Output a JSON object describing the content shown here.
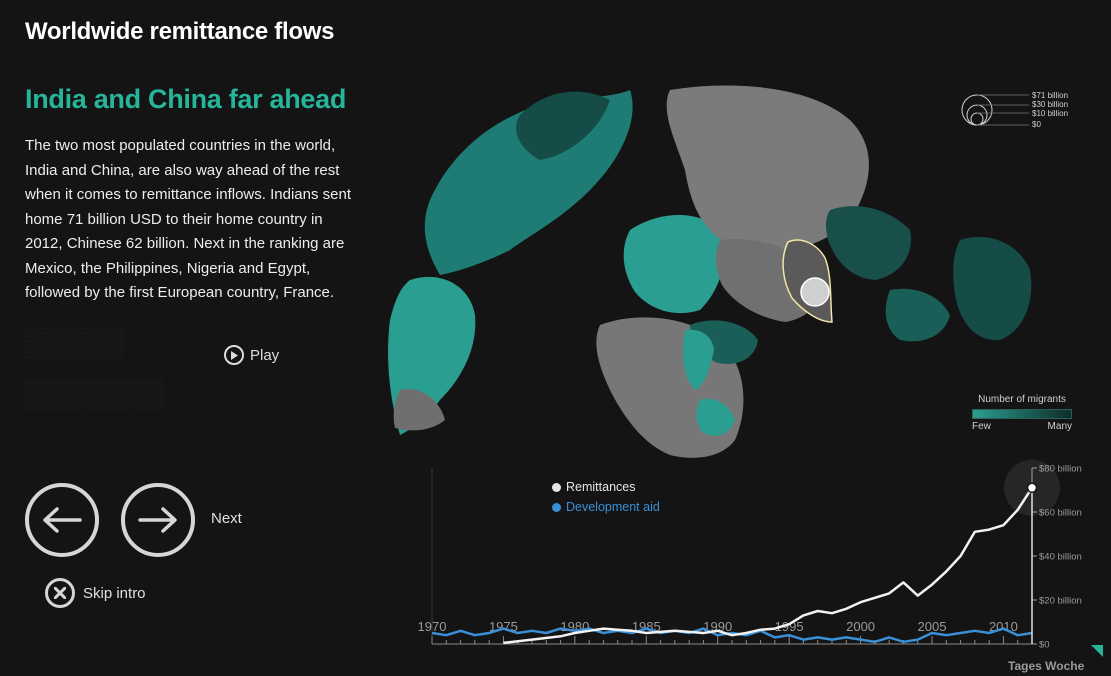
{
  "header": {
    "title": "Worldwide remittance flows"
  },
  "intro": {
    "heading": "India and China far ahead",
    "body": "The two most populated countries in the world, India and China, are also way ahead of the rest when it comes to remittance inflows. Indians sent home 71 billion USD to their home country in 2012, Chinese 62 billion. Next in the ranking are Mexico, the Philippines, Nigeria and Egypt, followed by the first European country, France.",
    "play_label": "Play"
  },
  "nav": {
    "next_label": "Next",
    "skip_label": "Skip intro"
  },
  "scale_legend": [
    "$71 billion",
    "$30 billion",
    "$10 billion",
    "$0"
  ],
  "migrants_legend": {
    "title": "Number of migrants",
    "low": "Few",
    "high": "Many",
    "colors": [
      "#2a9e90",
      "#0e2d2a"
    ]
  },
  "series_legend": [
    {
      "label": "Remittances",
      "color": "#e6e6e6"
    },
    {
      "label": "Development aid",
      "color": "#3a8fd6"
    }
  ],
  "chart_data": {
    "type": "line",
    "x_ticks": [
      "1970",
      "1975",
      "1980",
      "1985",
      "1990",
      "1995",
      "2000",
      "2005",
      "2010"
    ],
    "y_ticks": [
      "$0",
      "$20 billion",
      "$40 billion",
      "$60 billion",
      "$80 billion"
    ],
    "xlim": [
      1970,
      2012
    ],
    "ylim": [
      0,
      80
    ],
    "series": [
      {
        "name": "Remittances",
        "x": [
          1975,
          1977,
          1979,
          1980,
          1981,
          1982,
          1983,
          1984,
          1985,
          1986,
          1987,
          1988,
          1989,
          1990,
          1991,
          1992,
          1993,
          1994,
          1995,
          1996,
          1997,
          1998,
          1999,
          2000,
          2001,
          2002,
          2003,
          2004,
          2005,
          2006,
          2007,
          2008,
          2009,
          2010,
          2011,
          2012
        ],
        "values": [
          0.5,
          2,
          3.5,
          5,
          6,
          7,
          6.5,
          6,
          5,
          5.5,
          6,
          5.5,
          5,
          6,
          4,
          5,
          6.5,
          7,
          9,
          13,
          15,
          14,
          16,
          19,
          21,
          23,
          28,
          22,
          27,
          33,
          40,
          51,
          52,
          54,
          61,
          71
        ]
      },
      {
        "name": "Development aid",
        "x": [
          1970,
          1971,
          1972,
          1973,
          1974,
          1975,
          1976,
          1977,
          1978,
          1979,
          1980,
          1981,
          1982,
          1983,
          1984,
          1985,
          1986,
          1987,
          1988,
          1989,
          1990,
          1991,
          1992,
          1993,
          1994,
          1995,
          1996,
          1997,
          1998,
          1999,
          2000,
          2001,
          2002,
          2003,
          2004,
          2005,
          2006,
          2007,
          2008,
          2009,
          2010,
          2011,
          2012
        ],
        "values": [
          5,
          4,
          6,
          4,
          5,
          7,
          5,
          6,
          5,
          7,
          6,
          7,
          5,
          6,
          5,
          7,
          5,
          6,
          5,
          7,
          4,
          5,
          4,
          6,
          3,
          4,
          2,
          3,
          2,
          3,
          2,
          1,
          3,
          1,
          2,
          5,
          4,
          5,
          6,
          5,
          7,
          4,
          5
        ]
      }
    ]
  },
  "brand": "Tages Woche"
}
